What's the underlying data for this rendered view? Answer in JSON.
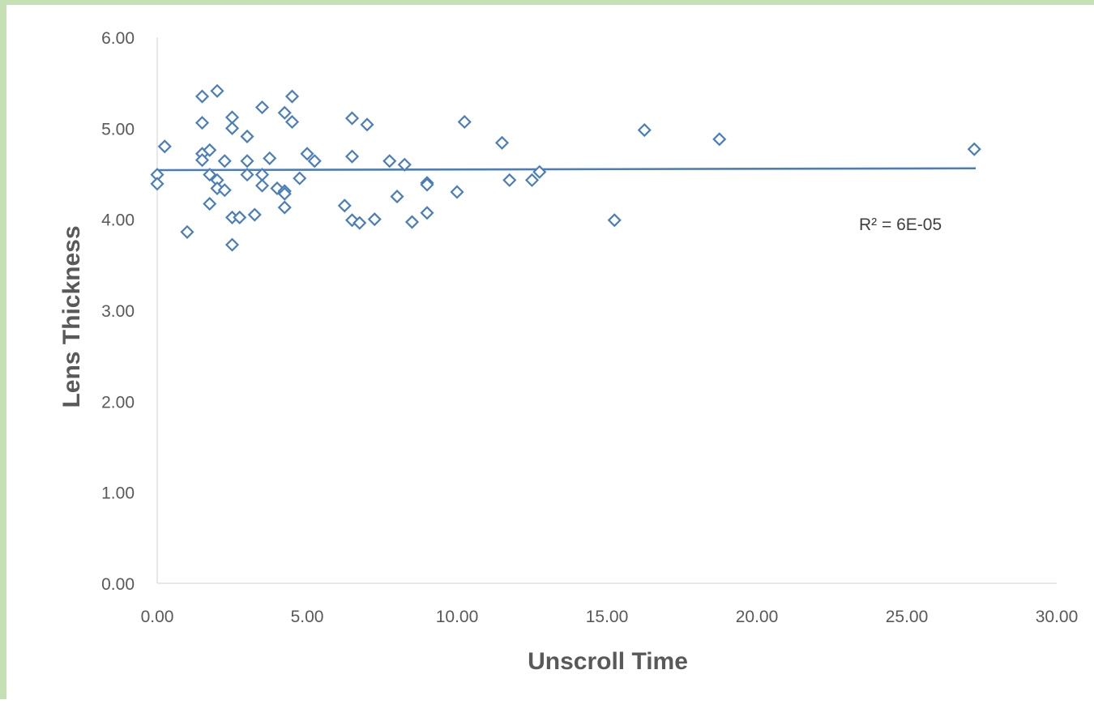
{
  "chart_data": {
    "type": "scatter",
    "title": "",
    "xlabel": "Unscroll Time",
    "ylabel": "Lens Thickness",
    "xlim": [
      0,
      30
    ],
    "ylim": [
      0,
      6
    ],
    "x_ticks": [
      "0.00",
      "5.00",
      "10.00",
      "15.00",
      "20.00",
      "25.00",
      "30.00"
    ],
    "y_ticks": [
      "0.00",
      "1.00",
      "2.00",
      "3.00",
      "4.00",
      "5.00",
      "6.00"
    ],
    "grid": false,
    "legend": "none",
    "marker": "diamond-open",
    "marker_color": "#4a7ebb",
    "trendline": {
      "type": "linear",
      "x_start": 0.0,
      "y_start": 4.54,
      "x_end": 27.3,
      "y_end": 4.56,
      "label": "R² = 6E-05",
      "color": "#4a7ebb"
    },
    "series": [
      {
        "points": [
          [
            0.0,
            4.49
          ],
          [
            0.0,
            4.39
          ],
          [
            0.25,
            4.8
          ],
          [
            1.0,
            3.86
          ],
          [
            1.5,
            5.35
          ],
          [
            1.5,
            5.06
          ],
          [
            1.5,
            4.72
          ],
          [
            1.5,
            4.65
          ],
          [
            1.75,
            4.76
          ],
          [
            1.75,
            4.49
          ],
          [
            1.75,
            4.17
          ],
          [
            2.0,
            5.41
          ],
          [
            2.0,
            4.43
          ],
          [
            2.0,
            4.34
          ],
          [
            2.25,
            4.64
          ],
          [
            2.25,
            4.32
          ],
          [
            2.5,
            5.12
          ],
          [
            2.5,
            5.0
          ],
          [
            2.5,
            4.02
          ],
          [
            2.5,
            3.72
          ],
          [
            2.75,
            4.02
          ],
          [
            3.0,
            4.91
          ],
          [
            3.0,
            4.64
          ],
          [
            3.0,
            4.49
          ],
          [
            3.25,
            4.05
          ],
          [
            3.5,
            5.23
          ],
          [
            3.5,
            4.49
          ],
          [
            3.5,
            4.37
          ],
          [
            3.75,
            4.67
          ],
          [
            4.0,
            4.34
          ],
          [
            4.25,
            5.17
          ],
          [
            4.25,
            4.31
          ],
          [
            4.25,
            4.28
          ],
          [
            4.25,
            4.13
          ],
          [
            4.5,
            5.35
          ],
          [
            4.5,
            5.07
          ],
          [
            4.75,
            4.45
          ],
          [
            5.0,
            4.72
          ],
          [
            5.25,
            4.64
          ],
          [
            6.25,
            4.15
          ],
          [
            6.5,
            5.11
          ],
          [
            6.5,
            4.69
          ],
          [
            6.5,
            3.99
          ],
          [
            6.75,
            3.96
          ],
          [
            7.0,
            5.04
          ],
          [
            7.25,
            4.0
          ],
          [
            7.75,
            4.64
          ],
          [
            8.0,
            4.25
          ],
          [
            8.25,
            4.6
          ],
          [
            8.5,
            3.97
          ],
          [
            9.0,
            4.4
          ],
          [
            9.0,
            4.38
          ],
          [
            9.0,
            4.07
          ],
          [
            10.0,
            4.3
          ],
          [
            10.25,
            5.07
          ],
          [
            11.5,
            4.84
          ],
          [
            11.75,
            4.43
          ],
          [
            12.5,
            4.43
          ],
          [
            12.75,
            4.52
          ],
          [
            15.25,
            3.99
          ],
          [
            16.25,
            4.98
          ],
          [
            18.75,
            4.88
          ],
          [
            27.25,
            4.77
          ]
        ]
      }
    ]
  }
}
